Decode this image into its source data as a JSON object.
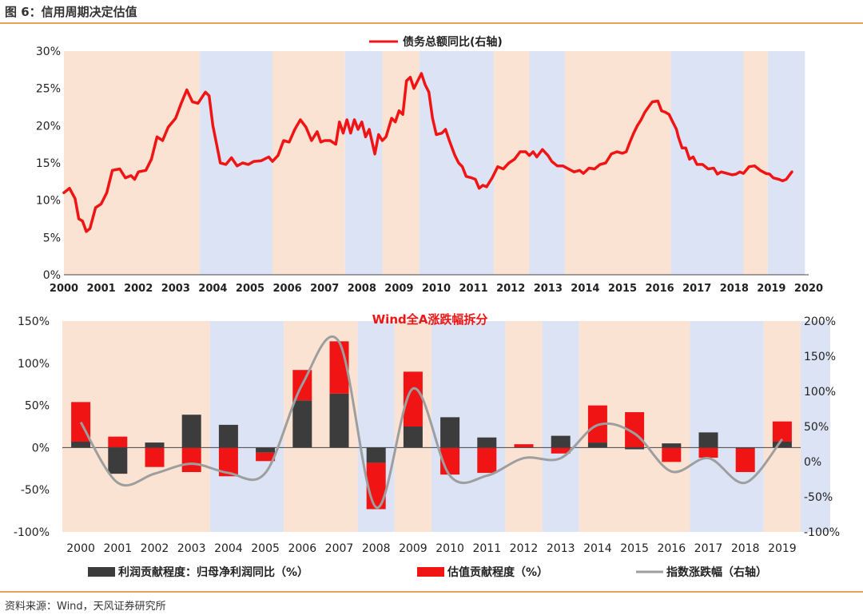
{
  "header": {
    "title": "图 6：信用周期决定估值"
  },
  "footer": {
    "source": "资料来源：Wind，天风证券研究所"
  },
  "colors": {
    "red": "#f01414",
    "dark": "#3c3c3c",
    "gray": "#9e9e9e",
    "band_orange": "#fbe3d3",
    "band_blue": "#dbe3f4",
    "rule": "#e8a25e"
  },
  "chart_data": [
    {
      "type": "line",
      "legend": "债务总额同比(右轴)",
      "y_ticks": [
        "30%",
        "25%",
        "20%",
        "15%",
        "10%",
        "5%",
        "0%"
      ],
      "ylim": [
        0,
        30
      ],
      "x_ticks": [
        "2000",
        "2001",
        "2002",
        "2003",
        "2004",
        "2005",
        "2006",
        "2007",
        "2008",
        "2009",
        "2010",
        "2011",
        "2012",
        "2013",
        "2014",
        "2015",
        "2016",
        "2017",
        "2018",
        "2019",
        "2020"
      ],
      "background_bands": [
        {
          "from": 2000.0,
          "to": 2003.65,
          "phase": "orange"
        },
        {
          "from": 2003.65,
          "to": 2005.6,
          "phase": "blue"
        },
        {
          "from": 2005.6,
          "to": 2007.55,
          "phase": "orange"
        },
        {
          "from": 2007.55,
          "to": 2008.55,
          "phase": "blue"
        },
        {
          "from": 2008.55,
          "to": 2009.55,
          "phase": "orange"
        },
        {
          "from": 2009.55,
          "to": 2011.55,
          "phase": "blue"
        },
        {
          "from": 2011.55,
          "to": 2012.5,
          "phase": "orange"
        },
        {
          "from": 2012.5,
          "to": 2013.45,
          "phase": "blue"
        },
        {
          "from": 2013.45,
          "to": 2016.3,
          "phase": "orange"
        },
        {
          "from": 2016.3,
          "to": 2018.25,
          "phase": "blue"
        },
        {
          "from": 2018.25,
          "to": 2018.9,
          "phase": "orange"
        },
        {
          "from": 2018.9,
          "to": 2019.9,
          "phase": "blue"
        }
      ],
      "series": [
        {
          "points": [
            [
              2000.0,
              11.0
            ],
            [
              2000.15,
              11.6
            ],
            [
              2000.3,
              10.2
            ],
            [
              2000.4,
              7.5
            ],
            [
              2000.5,
              7.2
            ],
            [
              2000.6,
              5.8
            ],
            [
              2000.7,
              6.2
            ],
            [
              2000.85,
              9.0
            ],
            [
              2001.0,
              9.5
            ],
            [
              2001.15,
              11.0
            ],
            [
              2001.3,
              14.0
            ],
            [
              2001.5,
              14.2
            ],
            [
              2001.65,
              13.0
            ],
            [
              2001.8,
              13.3
            ],
            [
              2001.9,
              12.8
            ],
            [
              2002.0,
              13.8
            ],
            [
              2002.2,
              14.0
            ],
            [
              2002.35,
              15.5
            ],
            [
              2002.5,
              18.5
            ],
            [
              2002.65,
              18.0
            ],
            [
              2002.8,
              19.8
            ],
            [
              2003.0,
              21.0
            ],
            [
              2003.15,
              23.0
            ],
            [
              2003.3,
              24.8
            ],
            [
              2003.45,
              23.2
            ],
            [
              2003.6,
              23.0
            ],
            [
              2003.8,
              24.5
            ],
            [
              2003.9,
              24.0
            ],
            [
              2004.0,
              20.0
            ],
            [
              2004.1,
              17.5
            ],
            [
              2004.2,
              15.0
            ],
            [
              2004.35,
              14.8
            ],
            [
              2004.5,
              15.7
            ],
            [
              2004.65,
              14.6
            ],
            [
              2004.8,
              15.0
            ],
            [
              2004.95,
              14.8
            ],
            [
              2005.1,
              15.2
            ],
            [
              2005.3,
              15.3
            ],
            [
              2005.5,
              15.8
            ],
            [
              2005.6,
              15.2
            ],
            [
              2005.75,
              16.0
            ],
            [
              2005.9,
              18.0
            ],
            [
              2006.05,
              17.8
            ],
            [
              2006.2,
              19.5
            ],
            [
              2006.35,
              20.8
            ],
            [
              2006.5,
              19.8
            ],
            [
              2006.65,
              18.0
            ],
            [
              2006.8,
              19.2
            ],
            [
              2006.9,
              17.8
            ],
            [
              2007.0,
              18.0
            ],
            [
              2007.15,
              18.0
            ],
            [
              2007.3,
              17.5
            ],
            [
              2007.4,
              20.5
            ],
            [
              2007.5,
              19.0
            ],
            [
              2007.6,
              20.8
            ],
            [
              2007.7,
              19.0
            ],
            [
              2007.8,
              20.8
            ],
            [
              2007.9,
              19.5
            ],
            [
              2008.0,
              20.5
            ],
            [
              2008.1,
              18.5
            ],
            [
              2008.2,
              19.5
            ],
            [
              2008.35,
              16.2
            ],
            [
              2008.45,
              18.8
            ],
            [
              2008.55,
              18.0
            ],
            [
              2008.65,
              18.5
            ],
            [
              2008.8,
              21.0
            ],
            [
              2008.9,
              20.5
            ],
            [
              2009.0,
              22.0
            ],
            [
              2009.1,
              21.5
            ],
            [
              2009.2,
              26.0
            ],
            [
              2009.3,
              26.5
            ],
            [
              2009.4,
              25.0
            ],
            [
              2009.5,
              26.0
            ],
            [
              2009.6,
              27.0
            ],
            [
              2009.7,
              25.5
            ],
            [
              2009.8,
              24.5
            ],
            [
              2009.9,
              21.0
            ],
            [
              2010.0,
              18.8
            ],
            [
              2010.15,
              19.0
            ],
            [
              2010.25,
              19.5
            ],
            [
              2010.35,
              18.0
            ],
            [
              2010.5,
              16.0
            ],
            [
              2010.6,
              15.0
            ],
            [
              2010.7,
              14.5
            ],
            [
              2010.8,
              13.2
            ],
            [
              2010.95,
              13.0
            ],
            [
              2011.05,
              12.8
            ],
            [
              2011.15,
              11.6
            ],
            [
              2011.25,
              12.0
            ],
            [
              2011.35,
              11.8
            ],
            [
              2011.5,
              13.0
            ],
            [
              2011.65,
              14.5
            ],
            [
              2011.8,
              14.2
            ],
            [
              2011.95,
              15.0
            ],
            [
              2012.1,
              15.5
            ],
            [
              2012.25,
              16.5
            ],
            [
              2012.4,
              16.5
            ],
            [
              2012.5,
              16.0
            ],
            [
              2012.6,
              16.5
            ],
            [
              2012.7,
              15.8
            ],
            [
              2012.85,
              16.8
            ],
            [
              2013.0,
              16.0
            ],
            [
              2013.1,
              15.2
            ],
            [
              2013.25,
              14.6
            ],
            [
              2013.4,
              14.6
            ],
            [
              2013.55,
              14.2
            ],
            [
              2013.7,
              13.8
            ],
            [
              2013.85,
              14.0
            ],
            [
              2013.95,
              13.6
            ],
            [
              2014.1,
              14.3
            ],
            [
              2014.25,
              14.2
            ],
            [
              2014.4,
              14.8
            ],
            [
              2014.55,
              15.0
            ],
            [
              2014.7,
              16.2
            ],
            [
              2014.85,
              16.5
            ],
            [
              2015.0,
              16.3
            ],
            [
              2015.1,
              16.5
            ],
            [
              2015.2,
              17.8
            ],
            [
              2015.3,
              19.0
            ],
            [
              2015.4,
              20.0
            ],
            [
              2015.5,
              20.8
            ],
            [
              2015.6,
              21.8
            ],
            [
              2015.7,
              22.5
            ],
            [
              2015.8,
              23.2
            ],
            [
              2015.95,
              23.3
            ],
            [
              2016.05,
              22.0
            ],
            [
              2016.15,
              21.8
            ],
            [
              2016.25,
              21.5
            ],
            [
              2016.35,
              20.5
            ],
            [
              2016.45,
              19.5
            ],
            [
              2016.5,
              18.5
            ],
            [
              2016.6,
              17.0
            ],
            [
              2016.7,
              17.0
            ],
            [
              2016.8,
              15.5
            ],
            [
              2016.9,
              15.8
            ],
            [
              2017.0,
              14.8
            ],
            [
              2017.15,
              14.8
            ],
            [
              2017.3,
              14.2
            ],
            [
              2017.45,
              14.3
            ],
            [
              2017.55,
              13.5
            ],
            [
              2017.65,
              13.8
            ],
            [
              2017.8,
              13.6
            ],
            [
              2017.95,
              13.4
            ],
            [
              2018.05,
              13.5
            ],
            [
              2018.15,
              13.8
            ],
            [
              2018.25,
              13.6
            ],
            [
              2018.4,
              14.5
            ],
            [
              2018.55,
              14.6
            ],
            [
              2018.7,
              14.0
            ],
            [
              2018.85,
              13.6
            ],
            [
              2018.95,
              13.5
            ],
            [
              2019.05,
              13.0
            ],
            [
              2019.2,
              12.8
            ],
            [
              2019.3,
              12.6
            ],
            [
              2019.4,
              12.8
            ],
            [
              2019.55,
              13.8
            ]
          ]
        }
      ]
    },
    {
      "type": "bar",
      "title": "Wind全A涨跌幅拆分",
      "categories": [
        "2000",
        "2001",
        "2002",
        "2003",
        "2004",
        "2005",
        "2006",
        "2007",
        "2008",
        "2009",
        "2010",
        "2011",
        "2012",
        "2013",
        "2014",
        "2015",
        "2016",
        "2017",
        "2018",
        "2019"
      ],
      "left_axis_ticks": [
        "150%",
        "100%",
        "50%",
        "0%",
        "-50%",
        "-100%"
      ],
      "left_ylim": [
        -100,
        150
      ],
      "right_axis_ticks": [
        "200%",
        "150%",
        "100%",
        "50%",
        "0%",
        "-50%",
        "-100%"
      ],
      "right_ylim": [
        -100,
        200
      ],
      "background_bands": [
        {
          "from": -0.5,
          "to": 3.5,
          "phase": "orange"
        },
        {
          "from": 3.5,
          "to": 5.5,
          "phase": "blue"
        },
        {
          "from": 5.5,
          "to": 7.5,
          "phase": "orange"
        },
        {
          "from": 7.5,
          "to": 8.5,
          "phase": "blue"
        },
        {
          "from": 8.5,
          "to": 9.5,
          "phase": "orange"
        },
        {
          "from": 9.5,
          "to": 11.5,
          "phase": "blue"
        },
        {
          "from": 11.5,
          "to": 12.5,
          "phase": "orange"
        },
        {
          "from": 12.5,
          "to": 13.5,
          "phase": "blue"
        },
        {
          "from": 13.5,
          "to": 16.5,
          "phase": "orange"
        },
        {
          "from": 16.5,
          "to": 18.5,
          "phase": "blue"
        },
        {
          "from": 18.5,
          "to": 19.5,
          "phase": "orange"
        },
        {
          "from": 19.5,
          "to": 20.3,
          "phase": "blue"
        }
      ],
      "series": [
        {
          "name": "利润贡献程度：归母净利润同比（%）",
          "axis": "left",
          "values": [
            7,
            -31,
            6,
            39,
            27,
            -6,
            56,
            64,
            -18,
            25,
            36,
            12,
            0,
            14,
            6,
            -2,
            5,
            18,
            -1,
            7
          ]
        },
        {
          "name": "估值贡献程度（%）",
          "axis": "left",
          "values": [
            47,
            13,
            -23,
            -29,
            -34,
            -10,
            36,
            62,
            -55,
            65,
            -32,
            -30,
            4,
            -7,
            44,
            42,
            -17,
            -12,
            -28,
            24
          ]
        },
        {
          "name": "指数涨跌幅（右轴）",
          "axis": "right",
          "type": "line",
          "values": [
            56,
            -30,
            -17,
            -3,
            -16,
            -16,
            110,
            170,
            -65,
            104,
            -20,
            -20,
            5,
            5,
            52,
            40,
            -14,
            5,
            -30,
            32
          ]
        }
      ]
    }
  ]
}
